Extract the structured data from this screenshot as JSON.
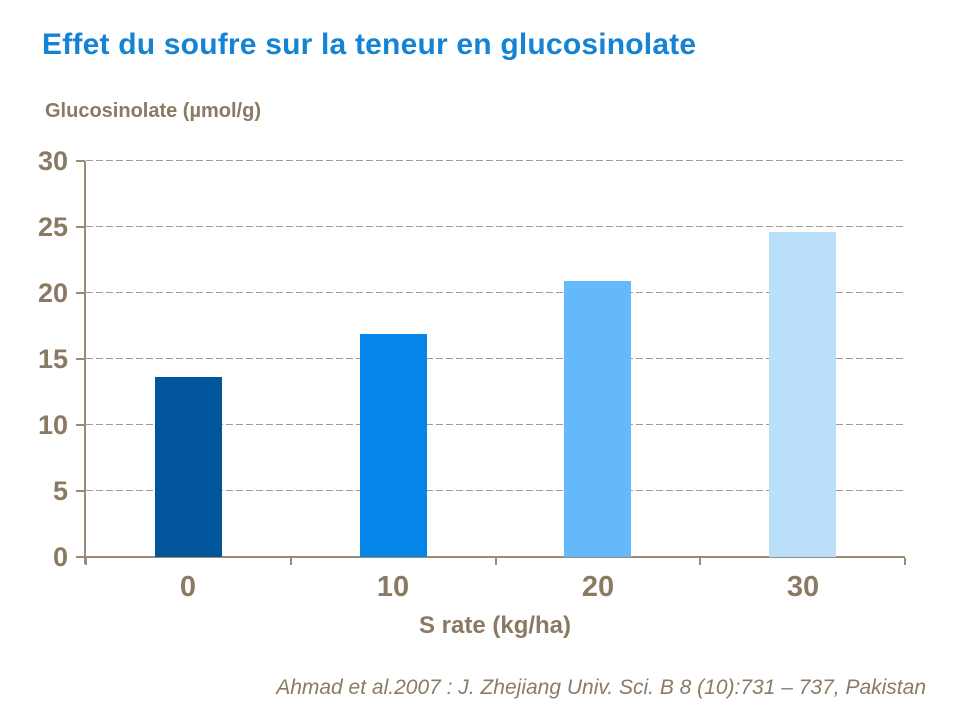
{
  "chart_data": {
    "type": "bar",
    "title": "Effet du soufre sur la teneur en glucosinolate",
    "categories": [
      "0",
      "10",
      "20",
      "30"
    ],
    "values": [
      13.6,
      16.9,
      20.9,
      24.6
    ],
    "bar_colors": [
      "#00559B",
      "#0685E8",
      "#64B9FA",
      "#BADFFB"
    ],
    "xlabel": "S rate (kg/ha)",
    "ylabel": "Glucosinolate (µmol/g)",
    "ylim": [
      0,
      30
    ],
    "y_ticks": [
      0,
      5,
      10,
      15,
      20,
      25,
      30
    ],
    "grid": "horizontal-dashed",
    "legend": "none"
  },
  "colors": {
    "title_blue": "#1583D4",
    "axis_text_brown": "#8A7A64",
    "gridline_tan": "#A89C88",
    "axis_line": "#9A8B76",
    "background": "#FFFFFF"
  },
  "citation": "Ahmad et al.2007 : J. Zhejiang Univ. Sci. B 8 (10):731 – 737, Pakistan"
}
